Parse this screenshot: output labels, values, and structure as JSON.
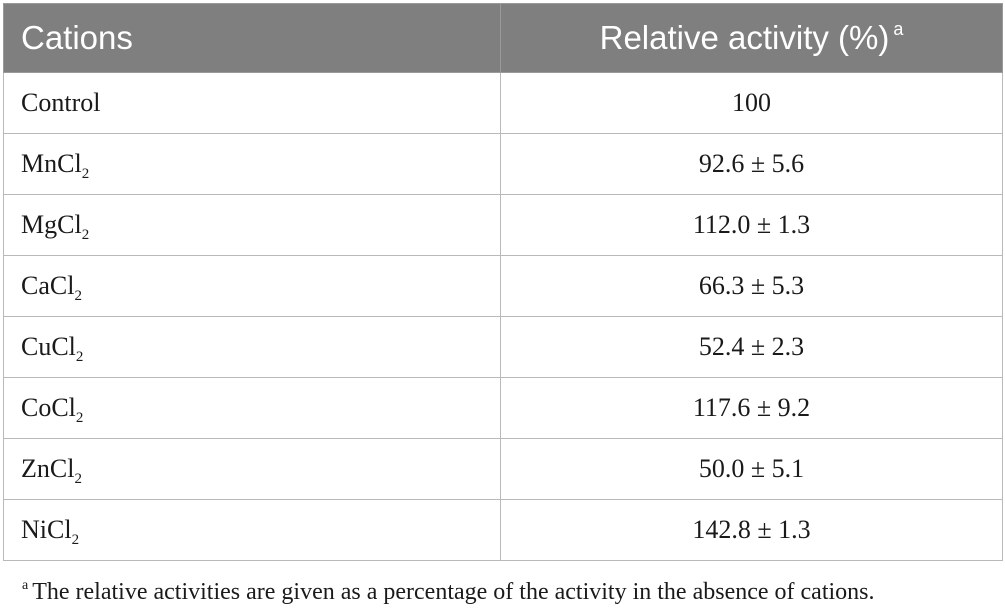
{
  "table": {
    "headers": {
      "cations": "Cations",
      "activity": "Relative activity (%)",
      "activity_note_marker": "a"
    },
    "rows": [
      {
        "name": "Control",
        "sub": "",
        "value": "100"
      },
      {
        "name": "MnCl",
        "sub": "2",
        "value": "92.6 ± 5.6"
      },
      {
        "name": "MgCl",
        "sub": "2",
        "value": "112.0 ± 1.3"
      },
      {
        "name": "CaCl",
        "sub": "2",
        "value": "66.3 ± 5.3"
      },
      {
        "name": "CuCl",
        "sub": "2",
        "value": "52.4 ± 2.3"
      },
      {
        "name": "CoCl",
        "sub": "2",
        "value": "117.6 ± 9.2"
      },
      {
        "name": "ZnCl",
        "sub": "2",
        "value": "50.0 ± 5.1"
      },
      {
        "name": "NiCl",
        "sub": "2",
        "value": "142.8 ± 1.3"
      }
    ]
  },
  "footnote": {
    "marker": "a",
    "text": "The relative activities are given as a percentage of the activity in the absence of cations."
  }
}
